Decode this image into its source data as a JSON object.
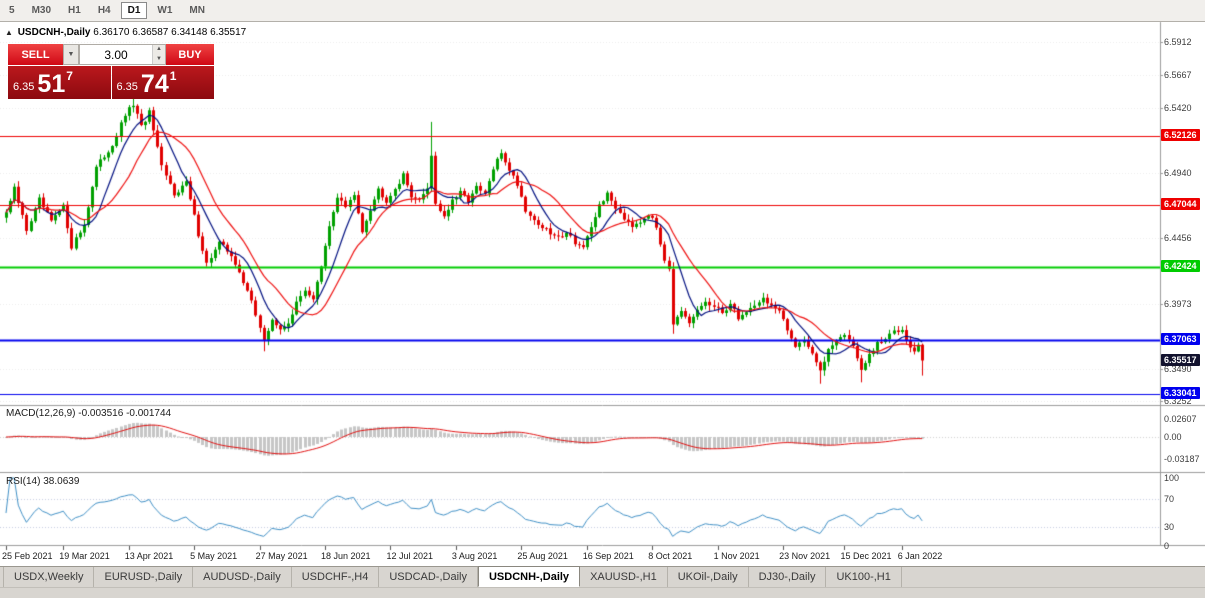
{
  "icons": {
    "chart_window": "▲",
    "dropdown": "▼",
    "spin_up": "▲",
    "spin_down": "▼"
  },
  "toolbar": {
    "active": "D1",
    "timeframes": [
      "5",
      "M30",
      "H1",
      "H4",
      "D1",
      "W1",
      "MN"
    ]
  },
  "chart": {
    "title": {
      "symbol": "USDCNH-,Daily",
      "open": "6.36170",
      "high": "6.36587",
      "low": "6.34148",
      "close": "6.35517"
    },
    "trade_panel": {
      "sell_label": "SELL",
      "buy_label": "BUY",
      "volume": "3.00",
      "sell": {
        "prefix": "6.35",
        "big": "51",
        "sup": "7"
      },
      "buy": {
        "prefix": "6.35",
        "big": "74",
        "sup": "1"
      }
    },
    "price_axis_labels": [
      "6.5912",
      "6.5667",
      "6.5420",
      "6.4940",
      "6.4456",
      "6.3973",
      "6.3490",
      "6.3252"
    ],
    "levels": [
      {
        "price": 6.52126,
        "label": "6.52126",
        "color": "#EE0000",
        "width": 1
      },
      {
        "price": 6.47044,
        "label": "6.47044",
        "color": "#EE0000",
        "width": 1
      },
      {
        "price": 6.42424,
        "label": "6.42424",
        "color": "#00CC00",
        "width": 2
      },
      {
        "price": 6.37063,
        "label": "6.37063",
        "color": "#0000EE",
        "width": 2
      },
      {
        "price": 6.33041,
        "label": "6.33041",
        "color": "#0000EE",
        "width": 1
      }
    ],
    "current_price": {
      "label": "6.35517",
      "bg": "#12122e"
    },
    "macd": {
      "label": "MACD(12,26,9)",
      "value_main": "-0.003516",
      "value_signal": "-0.001744",
      "axis": [
        "0.02607",
        "0.00",
        "-0.03187"
      ]
    },
    "rsi": {
      "label": "RSI(14)",
      "value": "38.0639",
      "axis": [
        "100",
        "70",
        "30",
        "0"
      ]
    },
    "dates": [
      "25 Feb 2021",
      "19 Mar 2021",
      "13 Apr 2021",
      "5 May 2021",
      "27 May 2021",
      "18 Jun 2021",
      "12 Jul 2021",
      "3 Aug 2021",
      "25 Aug 2021",
      "16 Sep 2021",
      "8 Oct 2021",
      "1 Nov 2021",
      "23 Nov 2021",
      "15 Dec 2021",
      "6 Jan 2022"
    ]
  },
  "chart_data": {
    "type": "candlestick",
    "symbol": "USDCNH-",
    "period": "Daily",
    "n": 225,
    "x0": 6,
    "spacing": 4.09,
    "ylim": [
      6.32222,
      6.60454
    ],
    "up_color": "#00A000",
    "down_color": "#E00000",
    "ma_fast": {
      "period": 8,
      "color": "#001080"
    },
    "ma_slow": {
      "period": 16,
      "color": "#ee1111"
    },
    "macd_style": {
      "hist_color": "#c6c6c6",
      "signal_color": "#e01010"
    },
    "rsi_style": {
      "color": "#3f8fc5",
      "levels": [
        70,
        30
      ]
    },
    "tick_indices": [
      0,
      14,
      30,
      46,
      62,
      78,
      94,
      110,
      126,
      142,
      158,
      174,
      190,
      205,
      219
    ],
    "anchors": [
      [
        0,
        6.465
      ],
      [
        2,
        6.482
      ],
      [
        5,
        6.452
      ],
      [
        8,
        6.474
      ],
      [
        11,
        6.458
      ],
      [
        14,
        6.469
      ],
      [
        16,
        6.44
      ],
      [
        19,
        6.456
      ],
      [
        22,
        6.498
      ],
      [
        26,
        6.515
      ],
      [
        29,
        6.537
      ],
      [
        31,
        6.545
      ],
      [
        33,
        6.528
      ],
      [
        35,
        6.539
      ],
      [
        38,
        6.498
      ],
      [
        41,
        6.479
      ],
      [
        44,
        6.487
      ],
      [
        47,
        6.449
      ],
      [
        49,
        6.427
      ],
      [
        52,
        6.442
      ],
      [
        55,
        6.434
      ],
      [
        58,
        6.412
      ],
      [
        60,
        6.401
      ],
      [
        62,
        6.379
      ],
      [
        63,
        6.369
      ],
      [
        65,
        6.386
      ],
      [
        67,
        6.377
      ],
      [
        69,
        6.384
      ],
      [
        71,
        6.397
      ],
      [
        73,
        6.408
      ],
      [
        75,
        6.401
      ],
      [
        77,
        6.424
      ],
      [
        79,
        6.454
      ],
      [
        81,
        6.477
      ],
      [
        83,
        6.469
      ],
      [
        85,
        6.477
      ],
      [
        87,
        6.452
      ],
      [
        89,
        6.468
      ],
      [
        91,
        6.482
      ],
      [
        93,
        6.474
      ],
      [
        95,
        6.483
      ],
      [
        97,
        6.492
      ],
      [
        99,
        6.478
      ],
      [
        101,
        6.473
      ],
      [
        103,
        6.484
      ],
      [
        104,
        6.507
      ],
      [
        105,
        6.472
      ],
      [
        107,
        6.462
      ],
      [
        109,
        6.473
      ],
      [
        111,
        6.479
      ],
      [
        113,
        6.474
      ],
      [
        115,
        6.483
      ],
      [
        117,
        6.478
      ],
      [
        119,
        6.497
      ],
      [
        121,
        6.509
      ],
      [
        123,
        6.497
      ],
      [
        125,
        6.486
      ],
      [
        127,
        6.467
      ],
      [
        129,
        6.459
      ],
      [
        131,
        6.454
      ],
      [
        133,
        6.449
      ],
      [
        135,
        6.446
      ],
      [
        137,
        6.451
      ],
      [
        139,
        6.443
      ],
      [
        141,
        6.439
      ],
      [
        143,
        6.452
      ],
      [
        145,
        6.471
      ],
      [
        147,
        6.478
      ],
      [
        149,
        6.469
      ],
      [
        151,
        6.461
      ],
      [
        153,
        6.456
      ],
      [
        155,
        6.459
      ],
      [
        157,
        6.464
      ],
      [
        159,
        6.454
      ],
      [
        161,
        6.431
      ],
      [
        162,
        6.424
      ],
      [
        163,
        6.383
      ],
      [
        165,
        6.39
      ],
      [
        167,
        6.382
      ],
      [
        169,
        6.392
      ],
      [
        171,
        6.399
      ],
      [
        173,
        6.394
      ],
      [
        175,
        6.391
      ],
      [
        177,
        6.397
      ],
      [
        179,
        6.387
      ],
      [
        181,
        6.391
      ],
      [
        183,
        6.397
      ],
      [
        185,
        6.401
      ],
      [
        187,
        6.396
      ],
      [
        189,
        6.391
      ],
      [
        191,
        6.377
      ],
      [
        193,
        6.367
      ],
      [
        195,
        6.371
      ],
      [
        197,
        6.361
      ],
      [
        199,
        6.346
      ],
      [
        201,
        6.364
      ],
      [
        203,
        6.371
      ],
      [
        205,
        6.374
      ],
      [
        207,
        6.367
      ],
      [
        209,
        6.347
      ],
      [
        211,
        6.359
      ],
      [
        213,
        6.367
      ],
      [
        215,
        6.371
      ],
      [
        217,
        6.377
      ],
      [
        219,
        6.379
      ],
      [
        220,
        6.372
      ],
      [
        222,
        6.361
      ],
      [
        223,
        6.367
      ],
      [
        224,
        6.3552
      ]
    ],
    "wick_overrides": {
      "31": {
        "h": 6.552
      },
      "63": {
        "l": 6.362
      },
      "104": {
        "h": 6.532
      },
      "163": {
        "h": 6.428,
        "l": 6.375
      },
      "199": {
        "l": 6.338
      },
      "209": {
        "l": 6.339
      },
      "224": {
        "l": 6.344
      }
    }
  },
  "tabs": [
    {
      "label": "USDX,Weekly",
      "active": false
    },
    {
      "label": "EURUSD-,Daily",
      "active": false
    },
    {
      "label": "AUDUSD-,Daily",
      "active": false
    },
    {
      "label": "USDCHF-,H4",
      "active": false
    },
    {
      "label": "USDCAD-,Daily",
      "active": false
    },
    {
      "label": "USDCNH-,Daily",
      "active": true
    },
    {
      "label": "XAUUSD-,H1",
      "active": false
    },
    {
      "label": "UKOil-,Daily",
      "active": false
    },
    {
      "label": "DJ30-,Daily",
      "active": false
    },
    {
      "label": "UK100-,H1",
      "active": false
    }
  ]
}
